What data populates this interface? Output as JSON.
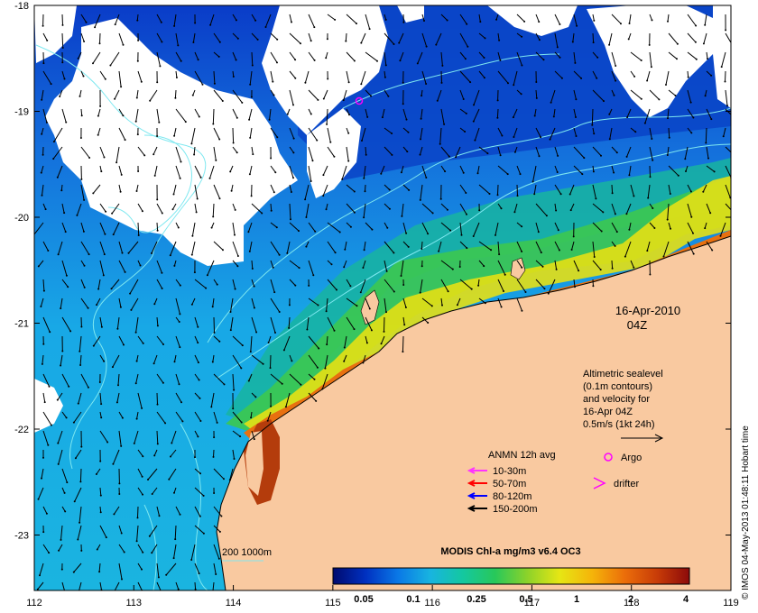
{
  "map": {
    "axes": {
      "x_ticks": [
        "112",
        "113",
        "114",
        "115",
        "116",
        "117",
        "118",
        "119"
      ],
      "y_ticks": [
        "-18",
        "-19",
        "-20",
        "-21",
        "-22",
        "-23"
      ]
    },
    "date_label": {
      "line1": "16-Apr-2010",
      "line2": "04Z"
    },
    "velocity_note": {
      "lines": [
        "Altimetric sealevel",
        "(0.1m contours)",
        "and velocity for",
        "16-Apr 04Z",
        "0.5m/s (1kt 24h)"
      ]
    },
    "anmn_legend": {
      "title": "ANMN 12h avg",
      "items": [
        {
          "label": "10-30m",
          "color": "#ff33ff"
        },
        {
          "label": "50-70m",
          "color": "#ff0000"
        },
        {
          "label": "80-120m",
          "color": "#0000ff"
        },
        {
          "label": "150-200m",
          "color": "#000000"
        }
      ]
    },
    "markers": {
      "argo": {
        "label": "Argo",
        "color": "#ff00ff"
      },
      "drifter": {
        "label": "drifter",
        "color": "#ff00ff"
      }
    },
    "isobath_label": "200  1000m",
    "colorbar": {
      "title": "MODIS Chl-a mg/m3 v6.4 OC3",
      "tick_labels": [
        "0.05",
        "0.1",
        "0.25",
        "0.5",
        "1",
        "2",
        "4"
      ],
      "colors": [
        "#000a6e",
        "#0030c0",
        "#0a78e6",
        "#18b4e0",
        "#14c8a0",
        "#28c85a",
        "#8cd22a",
        "#e6e614",
        "#f5b40a",
        "#eb6e0a",
        "#c83c08",
        "#8c0a0a"
      ]
    },
    "credit": "© IMOS 04-May-2013 01:48:11 Hobart time",
    "colors": {
      "land": "#f9c9a0",
      "cloud": "#ffffff",
      "contour": "#7fe8f0"
    }
  }
}
